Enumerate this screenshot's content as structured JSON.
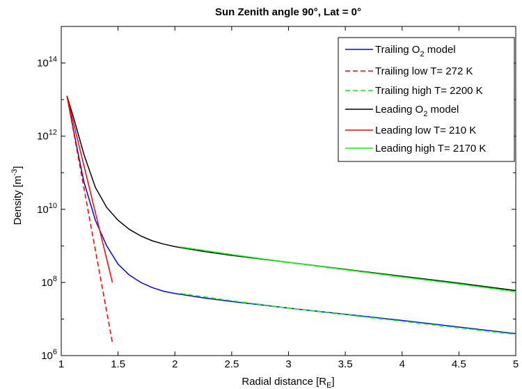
{
  "chart_data": {
    "type": "line",
    "title": "Sun Zenith angle 90°, Lat = 0°",
    "xlabel": {
      "main": "Radial distance [R",
      "sub": "E",
      "close": "]"
    },
    "ylabel": {
      "main": "Density [m",
      "sup": "-3",
      "close": "]"
    },
    "x_ticks": [
      "1",
      "1.5",
      "2",
      "2.5",
      "3",
      "3.5",
      "4",
      "4.5",
      "5"
    ],
    "x_tick_values": [
      1,
      1.5,
      2,
      2.5,
      3,
      3.5,
      4,
      4.5,
      5
    ],
    "y_ticks": [
      {
        "base": "10",
        "exp": "6",
        "value": 6
      },
      {
        "base": "10",
        "exp": "8",
        "value": 8
      },
      {
        "base": "10",
        "exp": "10",
        "value": 10
      },
      {
        "base": "10",
        "exp": "12",
        "value": 12
      },
      {
        "base": "10",
        "exp": "14",
        "value": 14
      }
    ],
    "xlim": [
      1,
      5
    ],
    "ylim_log10": [
      6,
      15
    ],
    "y_scale": "log",
    "legend_position": "top-right",
    "grid": false,
    "series": [
      {
        "name": "Trailing O2 model",
        "legend": {
          "pre": "Trailing O",
          "sub": "2",
          "post": " model"
        },
        "color": "#0000ff",
        "dash": "solid",
        "x": [
          1.05,
          1.1,
          1.15,
          1.2,
          1.3,
          1.4,
          1.5,
          1.6,
          1.7,
          1.8,
          1.9,
          2.0,
          2.25,
          2.5,
          3.0,
          3.5,
          4.0,
          4.5,
          5.0
        ],
        "log10_y": [
          13.1,
          12.3,
          11.5,
          10.75,
          9.7,
          9.0,
          8.5,
          8.2,
          8.0,
          7.86,
          7.76,
          7.7,
          7.58,
          7.48,
          7.3,
          7.13,
          6.96,
          6.78,
          6.6
        ]
      },
      {
        "name": "Trailing low T= 272 K",
        "legend": {
          "pre": "Trailing low T= 272 K",
          "sub": "",
          "post": ""
        },
        "color": "#ff0000",
        "dash": "dashed",
        "x": [
          1.05,
          1.45
        ],
        "log10_y": [
          13.1,
          6.35
        ]
      },
      {
        "name": "Trailing high T= 2200 K",
        "legend": {
          "pre": "Trailing high T= 2200 K",
          "sub": "",
          "post": ""
        },
        "color": "#00ff00",
        "dash": "dashed",
        "x": [
          2.05,
          2.5,
          3.0,
          3.5,
          4.0,
          4.5,
          5.0
        ],
        "log10_y": [
          7.7,
          7.5,
          7.3,
          7.12,
          6.94,
          6.76,
          6.58
        ]
      },
      {
        "name": "Leading O2 model",
        "legend": {
          "pre": "Leading O",
          "sub": "2",
          "post": " model"
        },
        "color": "#000000",
        "dash": "solid",
        "x": [
          1.05,
          1.1,
          1.15,
          1.2,
          1.3,
          1.4,
          1.5,
          1.6,
          1.7,
          1.8,
          1.9,
          2.0,
          2.25,
          2.5,
          3.0,
          3.5,
          4.0,
          4.5,
          5.0
        ],
        "log10_y": [
          13.1,
          12.6,
          12.05,
          11.5,
          10.6,
          10.05,
          9.7,
          9.45,
          9.27,
          9.14,
          9.05,
          8.98,
          8.85,
          8.74,
          8.55,
          8.36,
          8.17,
          7.98,
          7.78
        ]
      },
      {
        "name": "Leading low T= 210 K",
        "legend": {
          "pre": "Leading low T= 210 K",
          "sub": "",
          "post": ""
        },
        "color": "#ff0000",
        "dash": "solid",
        "x": [
          1.05,
          1.45
        ],
        "log10_y": [
          13.1,
          8.0
        ]
      },
      {
        "name": "Leading high T= 2170 K",
        "legend": {
          "pre": "Leading high T= 2170 K",
          "sub": "",
          "post": ""
        },
        "color": "#00ff00",
        "dash": "solid",
        "x": [
          2.05,
          2.5,
          3.0,
          3.5,
          4.0,
          4.5,
          5.0
        ],
        "log10_y": [
          8.97,
          8.76,
          8.55,
          8.35,
          8.15,
          7.96,
          7.75
        ]
      }
    ]
  }
}
